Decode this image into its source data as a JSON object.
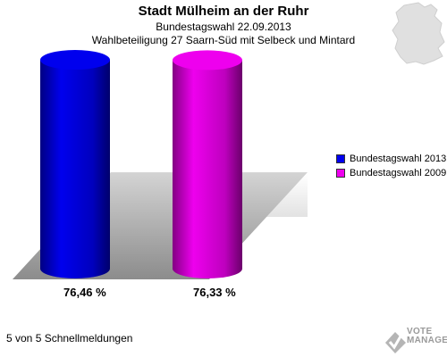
{
  "header": {
    "title": "Stadt Mülheim an der Ruhr",
    "subtitle": "Bundestagswahl 22.09.2013",
    "subtitle2": "Wahlbeteiligung 27 Saarn-Süd mit Selbeck und Mintard"
  },
  "chart_data": {
    "type": "bar",
    "categories": [
      "Bundestagswahl 2013",
      "Bundestagswahl 2009"
    ],
    "values": [
      76.46,
      76.33
    ],
    "labels": [
      "76,46 %",
      "76,33 %"
    ],
    "colors": [
      "#0000ee",
      "#ee00ee"
    ],
    "ylim": [
      0,
      100
    ],
    "grid": false,
    "legend_position": "right"
  },
  "legend": {
    "items": [
      {
        "label": "Bundestagswahl 2013",
        "color": "#0000ee"
      },
      {
        "label": "Bundestagswahl 2009",
        "color": "#ee00ee"
      }
    ]
  },
  "footer": {
    "status": "5 von 5 Schnellmeldungen"
  },
  "brand": {
    "line1": "VOTE",
    "line2": "MANAGER",
    "icon": "vote-manager-logo-icon"
  },
  "map": {
    "icon": "germany-map-icon"
  }
}
